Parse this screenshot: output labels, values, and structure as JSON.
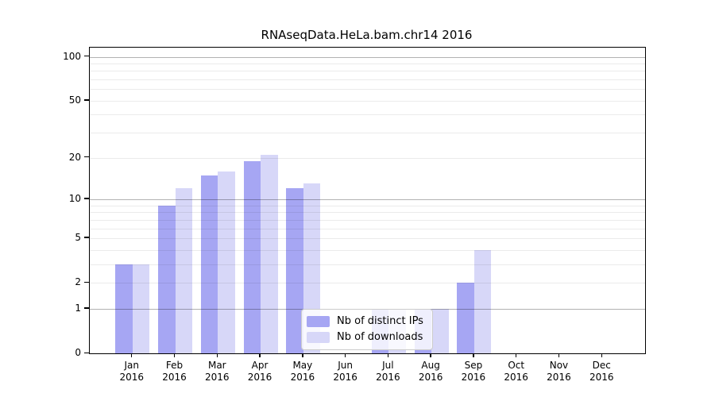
{
  "chart_data": {
    "type": "bar",
    "title": "RNAseqData.HeLa.bam.chr14 2016",
    "xlabel": "",
    "ylabel": "",
    "categories": [
      "Jan",
      "Feb",
      "Mar",
      "Apr",
      "May",
      "Jun",
      "Jul",
      "Aug",
      "Sep",
      "Oct",
      "Nov",
      "Dec"
    ],
    "xtick_year": "2016",
    "series": [
      {
        "name": "Nb of distinct IPs",
        "color": "#a6a6f3",
        "values": [
          3,
          9,
          15,
          19,
          12,
          0,
          1,
          1,
          2,
          0,
          0,
          0
        ]
      },
      {
        "name": "Nb of downloads",
        "color": "#d7d7f8",
        "values": [
          3,
          12,
          16,
          21,
          13,
          0,
          1,
          1,
          4,
          0,
          0,
          0
        ]
      }
    ],
    "yscale": "log1p",
    "ylim": [
      0,
      116
    ],
    "yticks": [
      0,
      1,
      2,
      5,
      10,
      20,
      50,
      100
    ],
    "grid": {
      "major_values": [
        1,
        10,
        100
      ],
      "minor_values": [
        2,
        3,
        4,
        5,
        6,
        7,
        8,
        9,
        20,
        30,
        40,
        50,
        60,
        70,
        80,
        90
      ]
    },
    "legend_position": "lower-center",
    "colors": {
      "axis": "#000000",
      "grid_major": "#b3b3b3",
      "grid_minor": "#e8e8e8",
      "background": "#ffffff"
    }
  }
}
